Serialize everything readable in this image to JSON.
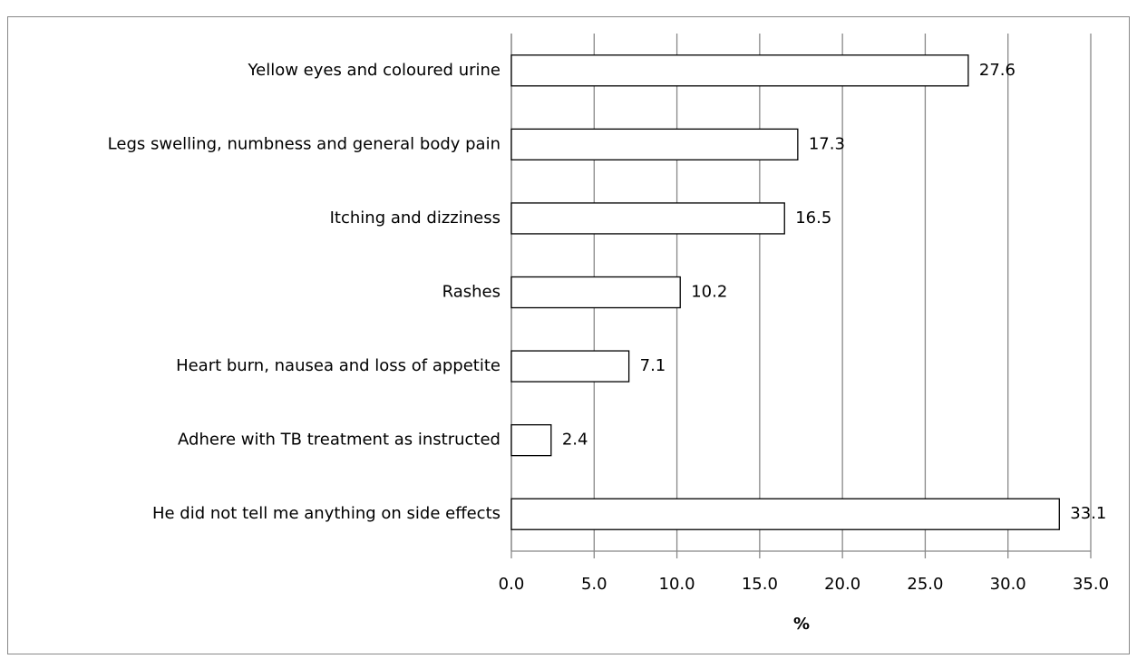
{
  "chart_data": {
    "type": "bar",
    "orientation": "horizontal",
    "categories": [
      "Yellow eyes and coloured urine",
      "Legs swelling, numbness and general body pain",
      "Itching and dizziness",
      "Rashes",
      "Heart burn, nausea and loss of appetite",
      "Adhere with TB treatment as instructed",
      "He did not tell me anything on side effects"
    ],
    "values": [
      27.6,
      17.3,
      16.5,
      10.2,
      7.1,
      2.4,
      33.1
    ],
    "color": "#ffffff",
    "xlabel": "%",
    "xlim": [
      0,
      35
    ],
    "xticks": [
      {
        "value": 0,
        "label": "0.0"
      },
      {
        "value": 5,
        "label": "5.0"
      },
      {
        "value": 10,
        "label": "10.0"
      },
      {
        "value": 15,
        "label": "15.0"
      },
      {
        "value": 20,
        "label": "20.0"
      },
      {
        "value": 25,
        "label": "25.0"
      },
      {
        "value": 30,
        "label": "30.0"
      },
      {
        "value": 35,
        "label": "35.0"
      }
    ],
    "grid": true
  }
}
